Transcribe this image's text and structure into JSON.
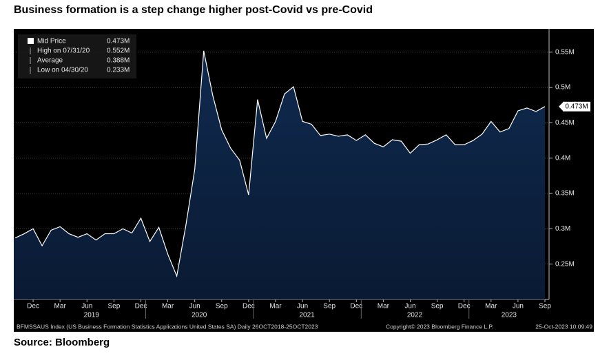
{
  "chart_data": {
    "type": "area",
    "title": "Business formation is a step change higher post-Covid vs pre-Covid",
    "source": "Source: Bloomberg",
    "categories": [
      null,
      null,
      "Dec",
      null,
      null,
      "Mar",
      null,
      null,
      "Jun",
      null,
      null,
      "Sep",
      null,
      null,
      "Dec",
      null,
      null,
      "Mar",
      null,
      null,
      "Jun",
      null,
      null,
      "Sep",
      null,
      null,
      "Dec",
      null,
      null,
      "Mar",
      null,
      null,
      "Jun",
      null,
      null,
      "Sep",
      null,
      null,
      "Dec",
      null,
      null,
      "Mar",
      null,
      null,
      "Jun",
      null,
      null,
      "Sep",
      null,
      null,
      "Dec",
      null,
      null,
      "Mar",
      null,
      null,
      "Jun",
      null,
      null,
      "Sep"
    ],
    "years": [
      "2019",
      "2020",
      "2021",
      "2022",
      "2023"
    ],
    "series": [
      {
        "name": "Mid Price",
        "color": "#ffffff",
        "fill": "#0f2a4f",
        "values": [
          0.287,
          0.293,
          0.3,
          0.276,
          0.298,
          0.303,
          0.293,
          0.288,
          0.293,
          0.284,
          0.293,
          0.293,
          0.3,
          0.294,
          0.315,
          0.282,
          0.302,
          0.264,
          0.233,
          0.304,
          0.384,
          0.552,
          0.489,
          0.44,
          0.414,
          0.397,
          0.348,
          0.483,
          0.428,
          0.452,
          0.491,
          0.501,
          0.452,
          0.448,
          0.432,
          0.434,
          0.431,
          0.433,
          0.425,
          0.433,
          0.421,
          0.416,
          0.426,
          0.424,
          0.407,
          0.419,
          0.42,
          0.426,
          0.433,
          0.419,
          0.419,
          0.425,
          0.434,
          0.452,
          0.437,
          0.442,
          0.467,
          0.471,
          0.466,
          0.473
        ]
      }
    ],
    "last_label": "0.473M",
    "legend_stats": [
      {
        "name": "Mid Price",
        "value": "0.473M"
      },
      {
        "name": "High on 07/31/20",
        "value": "0.552M"
      },
      {
        "name": "Average",
        "value": "0.388M"
      },
      {
        "name": "Low on 04/30/20",
        "value": "0.233M"
      }
    ],
    "ylim": [
      0.2,
      0.58
    ],
    "yticks": [
      {
        "value": 0.25,
        "label": "0.25M"
      },
      {
        "value": 0.3,
        "label": "0.3M"
      },
      {
        "value": 0.35,
        "label": "0.35M"
      },
      {
        "value": 0.4,
        "label": "0.4M"
      },
      {
        "value": 0.45,
        "label": "0.45M"
      },
      {
        "value": 0.5,
        "label": "0.5M"
      },
      {
        "value": 0.55,
        "label": "0.55M"
      }
    ],
    "grid": true,
    "footer_left": "BFMSSAUS Index (US Business Formation Statistics Applications United States SA)  Daily 26OCT2018-25OCT2023",
    "footer_mid": "Copyright© 2023 Bloomberg Finance L.P.",
    "footer_right": "25-Oct-2023 10:09:49"
  }
}
